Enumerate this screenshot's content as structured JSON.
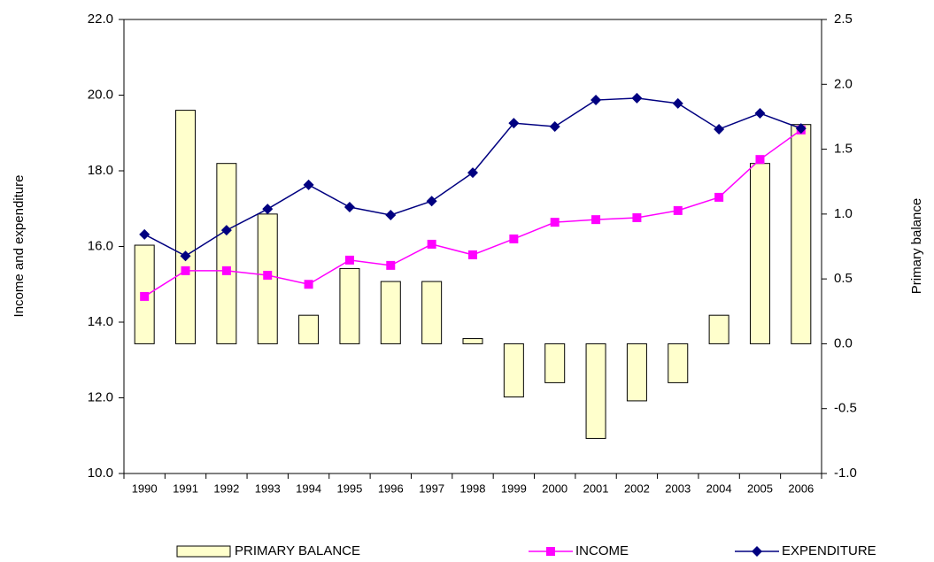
{
  "chart_data": {
    "type": "combo",
    "y_label": "Income and expenditure",
    "y2_label": "Primary balance",
    "categories": [
      "1990",
      "1991",
      "1992",
      "1993",
      "1994",
      "1995",
      "1996",
      "1997",
      "1998",
      "1999",
      "2000",
      "2001",
      "2002",
      "2003",
      "2004",
      "2005",
      "2006"
    ],
    "ylim": [
      10,
      22
    ],
    "yticks": [
      {
        "value": 10,
        "label": "10.0"
      },
      {
        "value": 12,
        "label": "12.0"
      },
      {
        "value": 14,
        "label": "14.0"
      },
      {
        "value": 16,
        "label": "16.0"
      },
      {
        "value": 18,
        "label": "18.0"
      },
      {
        "value": 20,
        "label": "20.0"
      },
      {
        "value": 22,
        "label": "22.0"
      }
    ],
    "y2lim": [
      -1,
      2.5
    ],
    "y2ticks": [
      {
        "value": -1,
        "label": "-1.0"
      },
      -0.5,
      {
        "value": 0,
        "label": "0.0"
      },
      0.5,
      {
        "value": 1,
        "label": "1.0"
      },
      1.5,
      {
        "value": 2,
        "label": "2.0"
      },
      2.5
    ],
    "legend": "bottom",
    "series": [
      {
        "name": "PRIMARY BALANCE",
        "type": "bar",
        "axis": "y2",
        "color": "#ffffcc",
        "values": [
          0.76,
          1.8,
          1.39,
          1.0,
          0.22,
          0.58,
          0.48,
          0.48,
          0.04,
          -0.41,
          -0.3,
          -0.73,
          -0.44,
          -0.3,
          0.22,
          1.39,
          1.69
        ]
      },
      {
        "name": "INCOME",
        "type": "line",
        "marker": "square",
        "color": "#ff00ff",
        "values": [
          14.68,
          15.36,
          15.36,
          15.24,
          15.0,
          15.64,
          15.5,
          16.06,
          15.78,
          16.2,
          16.64,
          16.71,
          16.76,
          16.95,
          17.3,
          18.3,
          19.08
        ]
      },
      {
        "name": "EXPENDITURE",
        "type": "line",
        "marker": "diamond",
        "color": "#000080",
        "values": [
          16.32,
          15.75,
          16.43,
          16.99,
          17.63,
          17.04,
          16.83,
          17.2,
          17.95,
          19.26,
          19.17,
          19.87,
          19.92,
          19.78,
          19.1,
          19.52,
          19.12
        ]
      }
    ]
  }
}
